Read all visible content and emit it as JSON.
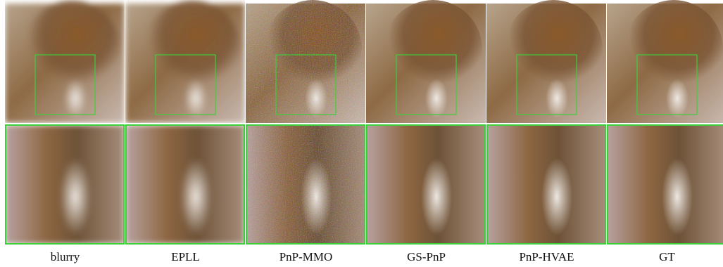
{
  "figure": {
    "columns": [
      {
        "label": "blurry"
      },
      {
        "label": "EPLL"
      },
      {
        "label": "PnP-MMO"
      },
      {
        "label": "GS-PnP"
      },
      {
        "label": "PnP-HVAE"
      },
      {
        "label": "GT"
      }
    ]
  }
}
